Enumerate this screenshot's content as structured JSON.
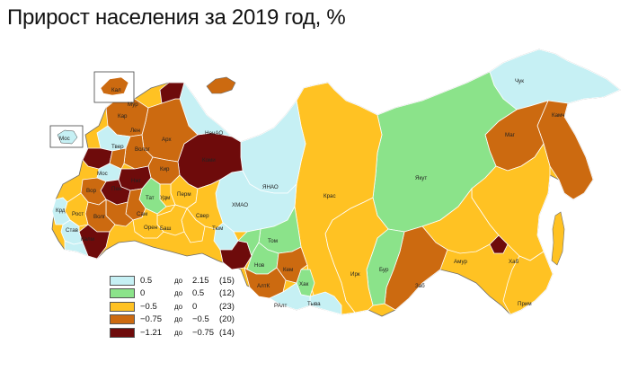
{
  "title": "Прирост населения за 2019 год, %",
  "colors": {
    "c1": "#c6f0f4",
    "c2": "#8be38a",
    "c3": "#ffc223",
    "c4": "#cc6a10",
    "c5": "#6e0b0b",
    "border": "#ffffff",
    "outline": "#6b6b6b"
  },
  "legend": [
    {
      "from": "0.5",
      "word": "до",
      "to": "2.15",
      "count": "(15)",
      "color": "#c6f0f4"
    },
    {
      "from": "0",
      "word": "до",
      "to": "0.5",
      "count": "(12)",
      "color": "#8be38a"
    },
    {
      "from": "−0.5",
      "word": "до",
      "to": "0",
      "count": "(23)",
      "color": "#ffc223"
    },
    {
      "from": "−0.75",
      "word": "до",
      "to": "−0.5",
      "count": "(20)",
      "color": "#cc6a10"
    },
    {
      "from": "−1.21",
      "word": "до",
      "to": "−0.75",
      "count": "(14)",
      "color": "#6e0b0b"
    }
  ],
  "regions": [
    {
      "label": "Чук",
      "cls": 1
    },
    {
      "label": "Камч",
      "cls": 4
    },
    {
      "label": "Маг",
      "cls": 4
    },
    {
      "label": "Якут",
      "cls": 2
    },
    {
      "label": "Хаб",
      "cls": 3
    },
    {
      "label": "Амур",
      "cls": 3
    },
    {
      "label": "Прим",
      "cls": 3
    },
    {
      "label": "Заб",
      "cls": 4
    },
    {
      "label": "Бур",
      "cls": 2
    },
    {
      "label": "Ирк",
      "cls": 3
    },
    {
      "label": "Крас",
      "cls": 3
    },
    {
      "label": "ЯНАО",
      "cls": 1
    },
    {
      "label": "ХМАО",
      "cls": 1
    },
    {
      "label": "Тюм",
      "cls": 1
    },
    {
      "label": "Том",
      "cls": 2
    },
    {
      "label": "Нов",
      "cls": 2
    },
    {
      "label": "Кем",
      "cls": 4
    },
    {
      "label": "АлтК",
      "cls": 4
    },
    {
      "label": "РАлт",
      "cls": 1
    },
    {
      "label": "Тыва",
      "cls": 1
    },
    {
      "label": "Хак",
      "cls": 2
    },
    {
      "label": "Свер",
      "cls": 3
    },
    {
      "label": "Перм",
      "cls": 3
    },
    {
      "label": "Баш",
      "cls": 3
    },
    {
      "label": "Коми",
      "cls": 5
    },
    {
      "label": "НенАО",
      "cls": 1
    },
    {
      "label": "Арх",
      "cls": 4
    },
    {
      "label": "Кар",
      "cls": 4
    },
    {
      "label": "Мур",
      "cls": 5
    },
    {
      "label": "Лен",
      "cls": 1
    },
    {
      "label": "Волог",
      "cls": 4
    },
    {
      "label": "Твер",
      "cls": 5
    },
    {
      "label": "Тат",
      "cls": 2
    },
    {
      "label": "Удм",
      "cls": 3
    },
    {
      "label": "Сам",
      "cls": 4
    },
    {
      "label": "Орен",
      "cls": 3
    },
    {
      "label": "Волг",
      "cls": 4
    },
    {
      "label": "Рост",
      "cls": 3
    },
    {
      "label": "Вор",
      "cls": 4
    },
    {
      "label": "Калм",
      "cls": 5
    },
    {
      "label": "Став",
      "cls": 1
    },
    {
      "label": "Крд",
      "cls": 1
    },
    {
      "label": "Мос",
      "cls": 1
    },
    {
      "label": "Кал",
      "cls": 4
    },
    {
      "label": "Нжг",
      "cls": 5
    },
    {
      "label": "Пен",
      "cls": 5
    },
    {
      "label": "Кир",
      "cls": 4
    }
  ]
}
